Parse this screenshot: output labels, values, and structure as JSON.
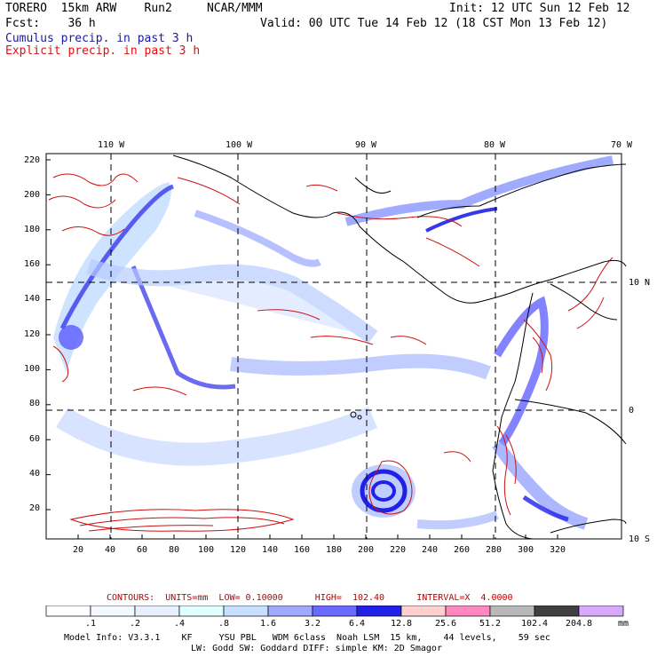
{
  "header": {
    "title": "TORERO  15km ARW    Run2     NCAR/MMM",
    "init": "Init: 12 UTC Sun 12 Feb 12",
    "fcst": "Fcst:    36 h",
    "valid": "Valid: 00 UTC Tue 14 Feb 12 (18 CST Mon 13 Feb 12)",
    "legend_cumulus": "Cumulus precip. in past 3 h",
    "legend_explicit": "Explicit precip. in past 3 h"
  },
  "colors": {
    "cumulus": "#1a1aa0",
    "explicit": "#e01010",
    "contour": "#d01010"
  },
  "map": {
    "top_lon_labels": [
      "110 W",
      "100 W",
      "90 W",
      "80 W",
      "70 W"
    ],
    "right_lat_labels": [
      "10 N",
      "0",
      "10 S"
    ],
    "y_ticks": [
      "220",
      "200",
      "180",
      "160",
      "140",
      "120",
      "100",
      "80",
      "60",
      "40",
      "20"
    ],
    "x_ticks": [
      "20",
      "40",
      "60",
      "80",
      "100",
      "120",
      "140",
      "160",
      "180",
      "200",
      "220",
      "240",
      "260",
      "280",
      "300",
      "320"
    ]
  },
  "contours": {
    "label": "CONTOURS:  UNITS=mm  LOW= 0.10000      HIGH=  102.40      INTERVAL=X  4.0000"
  },
  "colorbar": {
    "labels": [
      ".1",
      ".2",
      ".4",
      ".8",
      "1.6",
      "3.2",
      "6.4",
      "12.8",
      "25.6",
      "51.2",
      "102.4",
      "204.8"
    ],
    "unit": "mm",
    "colors": [
      "#ffffff",
      "#f4f8ff",
      "#e6f0ff",
      "#e0ffff",
      "#c8e0ff",
      "#a0a8ff",
      "#6a6aff",
      "#2020e8",
      "#ffd0d0",
      "#ff88c0",
      "#b8b8b8",
      "#404040",
      "#d8a8ff"
    ]
  },
  "footer": {
    "line1": "Model Info: V3.3.1    KF     YSU PBL   WDM 6class  Noah LSM  15 km,    44 levels,    59 sec",
    "line2": "LW: Godd SW: Goddard DIFF: simple KM: 2D Smagor"
  }
}
